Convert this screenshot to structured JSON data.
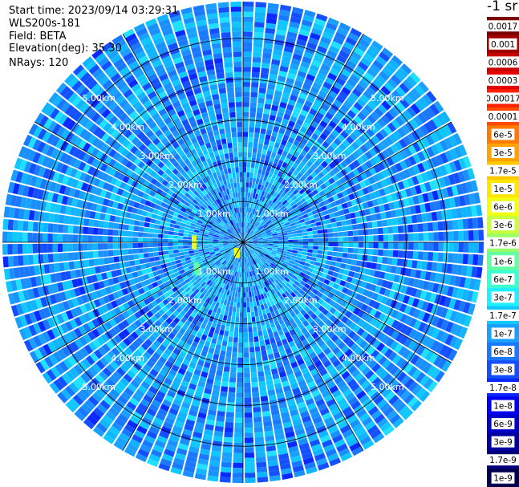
{
  "header": {
    "start_time": "Start time: 2023/09/14 03:29:31",
    "device": "WLS200s-181",
    "field": "Field: BETA",
    "elevation": "Elevation(deg): 35.30",
    "nrays": "NRays: 120"
  },
  "colorbar": {
    "unit_label": "-1 sr",
    "labels": [
      "0.0017",
      "0.001",
      "0.0006",
      "0.0003",
      "0.00017",
      "0.0001",
      "6e-5",
      "3e-5",
      "1.7e-5",
      "1e-5",
      "6e-6",
      "3e-6",
      "1.7e-6",
      "1e-6",
      "6e-7",
      "3e-7",
      "1.7e-7",
      "1e-7",
      "6e-8",
      "3e-8",
      "1.7e-8",
      "1e-8",
      "6e-9",
      "3e-9",
      "1.7e-9",
      "1e-9"
    ],
    "colors": [
      "#7a0000",
      "#a00000",
      "#c80000",
      "#e60000",
      "#ff1e00",
      "#ff4a00",
      "#ff7a00",
      "#ffa300",
      "#ffc800",
      "#ffe600",
      "#f0ff10",
      "#c8ff3c",
      "#96ff6a",
      "#64ffa0",
      "#3cffd0",
      "#1ef0ff",
      "#10c8ff",
      "#1aa0ff",
      "#1a78ff",
      "#1450ff",
      "#0a28ff",
      "#0000f0",
      "#0000c8",
      "#0000a0",
      "#00007a",
      "#000050"
    ]
  },
  "chart_data": {
    "type": "heatmap",
    "projection": "polar",
    "title": "",
    "range_rings_km": [
      1,
      2,
      3,
      4,
      5
    ],
    "range_labels": [
      "1.00km",
      "2.00km",
      "3.00km",
      "4.00km",
      "5.00km"
    ],
    "max_range_km": 5.9,
    "n_rays": 120,
    "azimuth_lines_deg": [
      0,
      30,
      60,
      90,
      120,
      150,
      180,
      210,
      240,
      270,
      300,
      330
    ],
    "dominant_value_range": [
      "3e-8",
      "1.7e-7"
    ],
    "features": [
      {
        "azimuth_deg": 270,
        "range_km": 1.2,
        "value": "1.7e-5"
      },
      {
        "azimuth_deg": 240,
        "range_km": 1.3,
        "value": "1.7e-6"
      },
      {
        "azimuth_deg": 210,
        "range_km": 0.3,
        "value": "1e-5"
      }
    ]
  }
}
